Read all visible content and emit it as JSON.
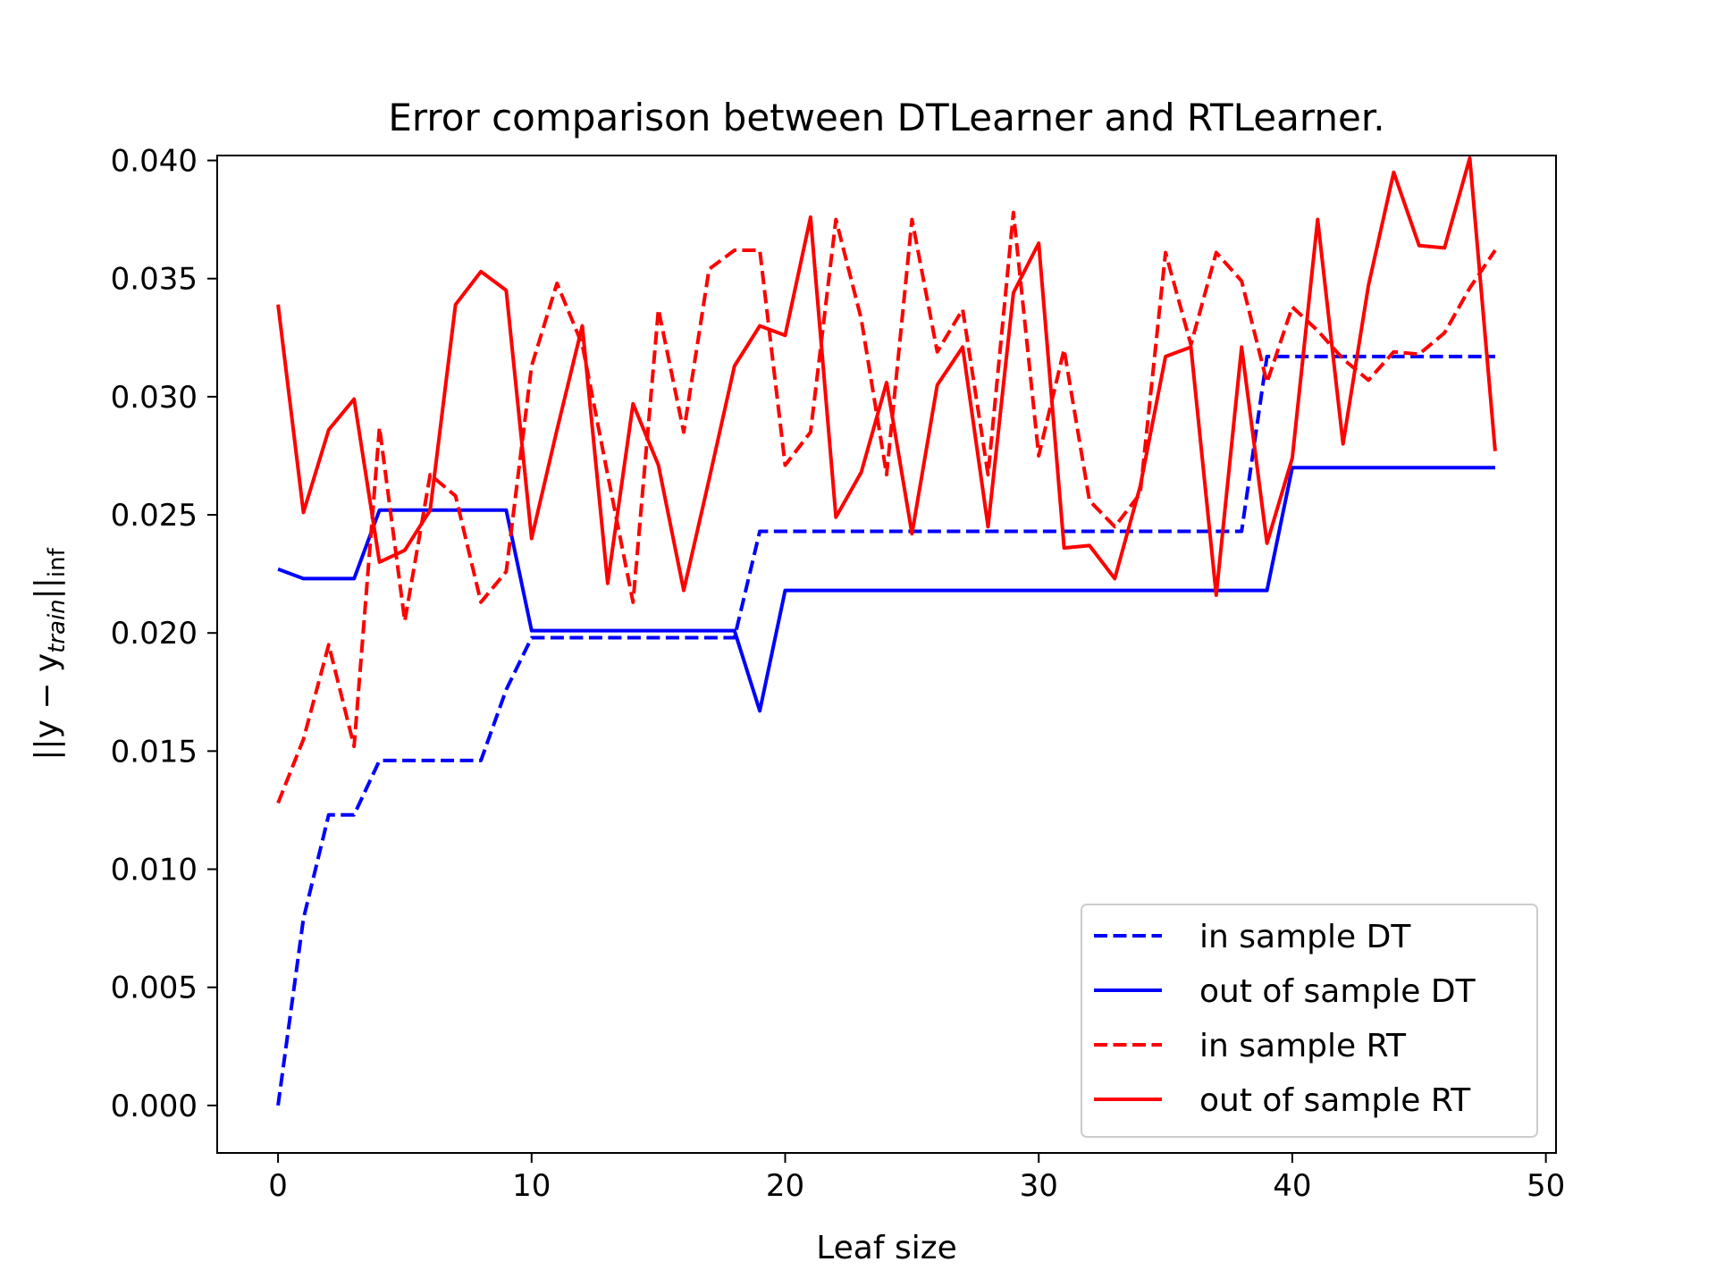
{
  "chart_data": {
    "type": "line",
    "title": "Error comparison between DTLearner and RTLearner.",
    "xlabel": "Leaf size",
    "ylabel": "||y − y_train||_inf",
    "ylabel_parts": {
      "open": "||y − y",
      "sub": "train",
      "close": "||",
      "sub2": "inf"
    },
    "xlim": [
      -2.4,
      50.4
    ],
    "ylim": [
      -0.00201,
      0.04021
    ],
    "xticks": [
      0,
      10,
      20,
      30,
      40,
      50
    ],
    "xtick_labels": [
      "0",
      "10",
      "20",
      "30",
      "40",
      "50"
    ],
    "yticks": [
      0.0,
      0.005,
      0.01,
      0.015,
      0.02,
      0.025,
      0.03,
      0.035,
      0.04
    ],
    "ytick_labels": [
      "0.000",
      "0.005",
      "0.010",
      "0.015",
      "0.020",
      "0.025",
      "0.030",
      "0.035",
      "0.040"
    ],
    "legend_position": "lower-right",
    "grid": false,
    "x": [
      0,
      1,
      2,
      3,
      4,
      5,
      6,
      7,
      8,
      9,
      10,
      11,
      12,
      13,
      14,
      15,
      16,
      17,
      18,
      19,
      20,
      21,
      22,
      23,
      24,
      25,
      26,
      27,
      28,
      29,
      30,
      31,
      32,
      33,
      34,
      35,
      36,
      37,
      38,
      39,
      40,
      41,
      42,
      43,
      44,
      45,
      46,
      47,
      48
    ],
    "series": [
      {
        "name": "in sample DT",
        "color": "#0000ff",
        "style": "dashed",
        "values": [
          0.0,
          0.0079,
          0.0123,
          0.0123,
          0.0146,
          0.0146,
          0.0146,
          0.0146,
          0.0146,
          0.0176,
          0.0198,
          0.0198,
          0.0198,
          0.0198,
          0.0198,
          0.0198,
          0.0198,
          0.0198,
          0.0198,
          0.0243,
          0.0243,
          0.0243,
          0.0243,
          0.0243,
          0.0243,
          0.0243,
          0.0243,
          0.0243,
          0.0243,
          0.0243,
          0.0243,
          0.0243,
          0.0243,
          0.0243,
          0.0243,
          0.0243,
          0.0243,
          0.0243,
          0.0243,
          0.0317,
          0.0317,
          0.0317,
          0.0317,
          0.0317,
          0.0317,
          0.0317,
          0.0317,
          0.0317,
          0.0317
        ]
      },
      {
        "name": "out of sample DT",
        "color": "#0000ff",
        "style": "solid",
        "values": [
          0.0227,
          0.0223,
          0.0223,
          0.0223,
          0.0252,
          0.0252,
          0.0252,
          0.0252,
          0.0252,
          0.0252,
          0.0201,
          0.0201,
          0.0201,
          0.0201,
          0.0201,
          0.0201,
          0.0201,
          0.0201,
          0.0201,
          0.0167,
          0.0218,
          0.0218,
          0.0218,
          0.0218,
          0.0218,
          0.0218,
          0.0218,
          0.0218,
          0.0218,
          0.0218,
          0.0218,
          0.0218,
          0.0218,
          0.0218,
          0.0218,
          0.0218,
          0.0218,
          0.0218,
          0.0218,
          0.0218,
          0.027,
          0.027,
          0.027,
          0.027,
          0.027,
          0.027,
          0.027,
          0.027,
          0.027
        ]
      },
      {
        "name": "in sample RT",
        "color": "#ff0000",
        "style": "dashed",
        "values": [
          0.0128,
          0.0155,
          0.0195,
          0.0152,
          0.0287,
          0.0205,
          0.0267,
          0.0258,
          0.0213,
          0.0226,
          0.0313,
          0.0348,
          0.0322,
          0.0267,
          0.0213,
          0.0337,
          0.0285,
          0.0354,
          0.0362,
          0.0362,
          0.0271,
          0.0285,
          0.0375,
          0.0333,
          0.0267,
          0.0375,
          0.0319,
          0.0337,
          0.0267,
          0.0378,
          0.0275,
          0.032,
          0.0256,
          0.0245,
          0.0259,
          0.0361,
          0.0322,
          0.0361,
          0.0349,
          0.0306,
          0.0338,
          0.0328,
          0.0316,
          0.0307,
          0.0319,
          0.0318,
          0.0327,
          0.0346,
          0.0362
        ]
      },
      {
        "name": "out of sample RT",
        "color": "#ff0000",
        "style": "solid",
        "values": [
          0.0339,
          0.0251,
          0.0286,
          0.0299,
          0.023,
          0.0235,
          0.0252,
          0.0339,
          0.0353,
          0.0345,
          0.024,
          0.0286,
          0.033,
          0.0221,
          0.0297,
          0.0271,
          0.0218,
          0.0265,
          0.0313,
          0.033,
          0.0326,
          0.0376,
          0.0249,
          0.0268,
          0.0306,
          0.0242,
          0.0305,
          0.0321,
          0.0245,
          0.0344,
          0.0365,
          0.0236,
          0.0237,
          0.0223,
          0.0262,
          0.0317,
          0.0321,
          0.0216,
          0.0321,
          0.0238,
          0.0274,
          0.0375,
          0.028,
          0.0347,
          0.0395,
          0.0364,
          0.0363,
          0.0401,
          0.0277
        ]
      }
    ]
  }
}
